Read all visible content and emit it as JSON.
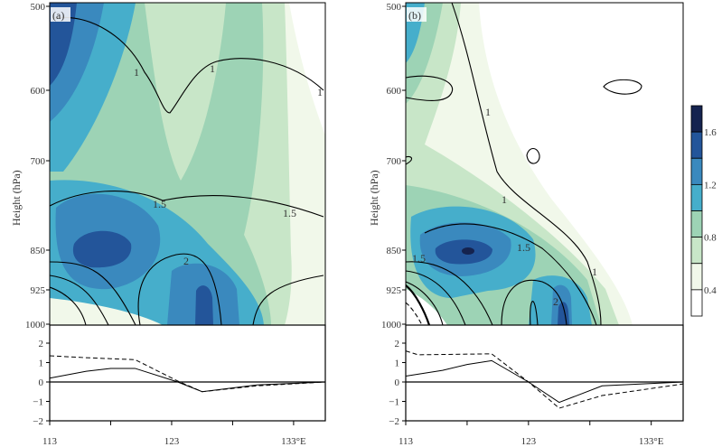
{
  "chart_data": {
    "type": "contour+line",
    "colors": [
      "#ffffff",
      "#f1f8ea",
      "#c8e6c8",
      "#9dd3b5",
      "#46aecb",
      "#3a89be",
      "#23559a",
      "#15234f"
    ],
    "colorbar": {
      "ticks": [
        "0.4",
        "0.8",
        "1.2",
        "1.6"
      ],
      "levels": [
        0.4,
        0.6,
        0.8,
        1.0,
        1.2,
        1.4,
        1.6
      ]
    },
    "upper_axes": {
      "ylabel": "Height (hPa)",
      "yticks": [
        "500",
        "600",
        "700",
        "850",
        "925",
        "1000"
      ]
    },
    "lower_axes": {
      "yticks": [
        "2",
        "1",
        "0",
        "−1",
        "−2"
      ],
      "ylim": [
        -2,
        2
      ],
      "xlim": [
        113,
        135.6
      ],
      "xticks": [
        113,
        118,
        123,
        128,
        133
      ],
      "xtick_labels": [
        "113",
        "",
        "123",
        "",
        "133°E"
      ]
    },
    "panels": [
      {
        "label": "(a)",
        "contour_labels": [
          "1",
          "1",
          "1",
          "1.5",
          "1.5",
          "2"
        ],
        "series": [
          {
            "style": "solid",
            "x": [
              113,
              116,
              118,
              120,
              123.5,
              125.5,
              130,
              135.6
            ],
            "y": [
              0.2,
              0.55,
              0.7,
              0.7,
              0.0,
              -0.5,
              -0.15,
              0
            ]
          },
          {
            "style": "dashed",
            "x": [
              113,
              116,
              118,
              120,
              123.5,
              125.5,
              130,
              135.6
            ],
            "y": [
              1.35,
              1.25,
              1.2,
              1.15,
              0.05,
              -0.5,
              -0.2,
              0
            ]
          }
        ]
      },
      {
        "label": "(b)",
        "contour_labels": [
          "1",
          "1",
          "1",
          "1.5",
          "1.5",
          "2"
        ],
        "series": [
          {
            "style": "solid",
            "x": [
              113,
              116,
              118,
              120,
              123,
              125.5,
              129,
              135.6
            ],
            "y": [
              0.3,
              0.6,
              0.9,
              1.1,
              0.0,
              -1.05,
              -0.2,
              0
            ]
          },
          {
            "style": "dashed",
            "x": [
              113,
              114,
              120,
              123,
              125.5,
              129,
              135.6
            ],
            "y": [
              1.6,
              1.4,
              1.45,
              0.0,
              -1.35,
              -0.7,
              -0.1
            ]
          }
        ]
      }
    ]
  }
}
